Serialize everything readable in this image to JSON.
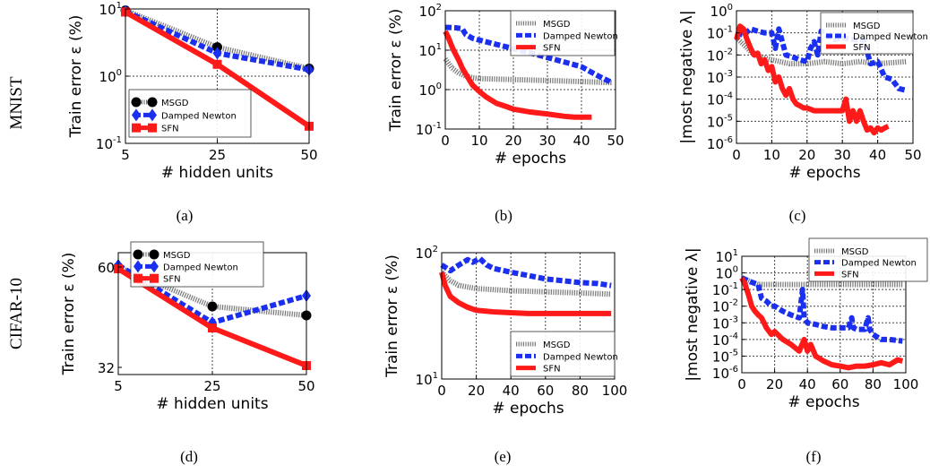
{
  "rows": [
    {
      "label": "MNIST"
    },
    {
      "label": "CIFAR-10"
    }
  ],
  "colors": {
    "MSGD": "#777777",
    "Damped Newton": "#1a2ff0",
    "SFN": "#ff1a1a"
  },
  "chart_data": [
    {
      "panel": "(a)",
      "type": "line",
      "xlabel": "# hidden units",
      "ylabel": "Train error ε (%)",
      "xscale": "categorical",
      "yscale": "log",
      "x": [
        5,
        25,
        50
      ],
      "xticks": [
        "5",
        "25",
        "50"
      ],
      "ylim": [
        0.1,
        10
      ],
      "yticks": [
        0.1,
        1,
        10
      ],
      "yticklabels": [
        "10^-1",
        "10^0",
        "10^1"
      ],
      "grid": true,
      "legend_position": "lower-left",
      "series": [
        {
          "name": "MSGD",
          "values": [
            9.5,
            2.7,
            1.3
          ]
        },
        {
          "name": "Damped Newton",
          "values": [
            9.2,
            2.2,
            1.25
          ]
        },
        {
          "name": "SFN",
          "values": [
            9.0,
            1.5,
            0.18
          ]
        }
      ]
    },
    {
      "panel": "(b)",
      "type": "line",
      "xlabel": "# epochs",
      "ylabel": "Train error ε (%)",
      "xscale": "linear",
      "yscale": "log",
      "xlim": [
        0,
        50
      ],
      "xticks": [
        0,
        10,
        20,
        30,
        40,
        50
      ],
      "ylim": [
        0.1,
        100
      ],
      "yticks": [
        0.1,
        1,
        10,
        100
      ],
      "yticklabels": [
        "10^-1",
        "10^0",
        "10^1",
        "10^2"
      ],
      "grid": true,
      "legend_position": "top-right",
      "series": [
        {
          "name": "MSGD",
          "x": [
            0,
            2,
            4,
            6,
            8,
            10,
            15,
            20,
            30,
            40,
            49
          ],
          "values": [
            6,
            3.5,
            2.6,
            2.2,
            2.0,
            1.9,
            1.85,
            1.8,
            1.7,
            1.6,
            1.5
          ]
        },
        {
          "name": "Damped Newton",
          "x": [
            0,
            3,
            5,
            6,
            8,
            10,
            15,
            20,
            25,
            30,
            35,
            40,
            45,
            49
          ],
          "values": [
            38,
            37,
            35,
            25,
            20,
            18,
            14,
            11,
            8.5,
            6.5,
            5,
            3.8,
            2.2,
            1.5
          ]
        },
        {
          "name": "SFN",
          "x": [
            0,
            1,
            2,
            3,
            4,
            5,
            6,
            7,
            8,
            10,
            12,
            15,
            18,
            20,
            25,
            30,
            35,
            38,
            43
          ],
          "values": [
            30,
            20,
            12,
            8,
            5.5,
            3.5,
            2.5,
            1.8,
            1.3,
            0.9,
            0.65,
            0.45,
            0.37,
            0.32,
            0.27,
            0.24,
            0.21,
            0.2,
            0.2
          ]
        }
      ]
    },
    {
      "panel": "(c)",
      "type": "line",
      "xlabel": "# epochs",
      "ylabel": "|most negative λ|",
      "xscale": "linear",
      "yscale": "log",
      "xlim": [
        0,
        50
      ],
      "xticks": [
        0,
        10,
        20,
        30,
        40,
        50
      ],
      "ylim": [
        1e-06,
        1
      ],
      "yticks": [
        1e-06,
        1e-05,
        0.0001,
        0.001,
        0.01,
        0.1,
        1
      ],
      "yticklabels": [
        "10^-6",
        "10^-5",
        "10^-4",
        "10^-3",
        "10^-2",
        "10^-1",
        "10^0"
      ],
      "grid": true,
      "legend_position": "top-right",
      "series": [
        {
          "name": "MSGD",
          "x": [
            0,
            2,
            5,
            10,
            15,
            20,
            25,
            30,
            35,
            40,
            48
          ],
          "values": [
            0.06,
            0.03,
            0.01,
            0.006,
            0.004,
            0.004,
            0.005,
            0.004,
            0.005,
            0.004,
            0.005
          ]
        },
        {
          "name": "Damped Newton",
          "x": [
            0,
            2,
            4,
            6,
            8,
            10,
            11,
            12,
            14,
            16,
            18,
            20,
            21,
            22,
            23,
            24,
            26,
            28,
            30,
            33,
            36,
            38,
            40,
            42,
            44,
            46,
            48
          ],
          "values": [
            0.1,
            0.08,
            0.15,
            0.12,
            0.1,
            0.1,
            0.02,
            0.15,
            0.01,
            0.008,
            0.006,
            0.005,
            0.02,
            0.04,
            0.01,
            0.12,
            0.07,
            0.05,
            0.06,
            0.05,
            0.05,
            0.004,
            0.005,
            0.001,
            0.0008,
            0.0003,
            0.00025
          ]
        },
        {
          "name": "SFN",
          "x": [
            0,
            1,
            2,
            3,
            4,
            5,
            6,
            7,
            8,
            9,
            10,
            11,
            12,
            13,
            14,
            15,
            16,
            17,
            18,
            19,
            20,
            22,
            24,
            26,
            28,
            30,
            31,
            32,
            33,
            34,
            35,
            36,
            37,
            38,
            39,
            40,
            41,
            42,
            43
          ],
          "values": [
            0.05,
            0.2,
            0.15,
            0.05,
            0.02,
            0.01,
            0.012,
            0.004,
            0.006,
            0.002,
            0.003,
            0.0006,
            0.001,
            0.0003,
            0.00015,
            0.0003,
            0.0001,
            6e-05,
            5e-05,
            4e-05,
            4e-05,
            3e-05,
            3e-05,
            3e-05,
            3e-05,
            3e-05,
            0.0001,
            1e-05,
            3e-05,
            1e-05,
            3e-05,
            1e-05,
            4e-06,
            5e-06,
            3e-06,
            5e-06,
            4e-06,
            5e-06,
            6e-06
          ]
        }
      ]
    },
    {
      "panel": "(d)",
      "type": "line",
      "xlabel": "# hidden units",
      "ylabel": "Train error ε (%)",
      "xscale": "categorical",
      "yscale": "linear",
      "x": [
        5,
        25,
        50
      ],
      "xticks": [
        "5",
        "25",
        "50"
      ],
      "ylim": [
        30,
        64
      ],
      "yticks": [
        32,
        60
      ],
      "yticklabels": [
        "32",
        "60"
      ],
      "grid": true,
      "legend_position": "top-right",
      "series": [
        {
          "name": "MSGD",
          "values": [
            60,
            49,
            46.5
          ]
        },
        {
          "name": "Damped Newton",
          "values": [
            60.5,
            44.5,
            52
          ]
        },
        {
          "name": "SFN",
          "values": [
            59.5,
            43,
            32.5
          ]
        }
      ]
    },
    {
      "panel": "(e)",
      "type": "line",
      "xlabel": "# epochs",
      "ylabel": "Train error ε (%)",
      "xscale": "linear",
      "yscale": "log",
      "xlim": [
        0,
        100
      ],
      "xticks": [
        0,
        20,
        40,
        60,
        80,
        100
      ],
      "ylim": [
        10,
        100
      ],
      "yticks": [
        10,
        100
      ],
      "yticklabels": [
        "10^1",
        "10^2"
      ],
      "grid": true,
      "legend_position": "lower-right",
      "series": [
        {
          "name": "MSGD",
          "x": [
            0,
            5,
            10,
            20,
            30,
            40,
            60,
            80,
            98
          ],
          "values": [
            70,
            60,
            55,
            52,
            51,
            50,
            49,
            48,
            47
          ]
        },
        {
          "name": "Damped Newton",
          "x": [
            0,
            5,
            10,
            15,
            18,
            22,
            26,
            30,
            40,
            50,
            60,
            70,
            80,
            90,
            98
          ],
          "values": [
            80,
            72,
            80,
            88,
            84,
            90,
            80,
            75,
            70,
            66,
            62,
            60,
            58,
            57,
            55
          ]
        },
        {
          "name": "SFN",
          "x": [
            0,
            2,
            5,
            10,
            15,
            20,
            30,
            40,
            50,
            60,
            80,
            98
          ],
          "values": [
            70,
            55,
            45,
            40,
            37,
            35,
            34,
            33.5,
            33,
            33,
            33,
            33
          ]
        }
      ]
    },
    {
      "panel": "(f)",
      "type": "line",
      "xlabel": "# epochs",
      "ylabel": "|most negative λ|",
      "xscale": "linear",
      "yscale": "log",
      "xlim": [
        0,
        100
      ],
      "xticks": [
        0,
        20,
        40,
        60,
        80,
        100
      ],
      "ylim": [
        1e-06,
        10
      ],
      "yticks": [
        1e-06,
        1e-05,
        0.0001,
        0.001,
        0.01,
        0.1,
        1,
        10
      ],
      "yticklabels": [
        "10^-6",
        "10^-5",
        "10^-4",
        "10^-3",
        "10^-2",
        "10^-1",
        "10^0",
        "10^1"
      ],
      "grid": true,
      "legend_position": "top-right",
      "series": [
        {
          "name": "MSGD",
          "x": [
            0,
            5,
            10,
            20,
            40,
            60,
            80,
            98
          ],
          "values": [
            0.5,
            0.3,
            0.2,
            0.2,
            0.2,
            0.2,
            0.2,
            0.2
          ]
        },
        {
          "name": "Damped Newton",
          "x": [
            0,
            5,
            10,
            12,
            15,
            18,
            20,
            25,
            30,
            35,
            37,
            38,
            40,
            45,
            50,
            55,
            60,
            65,
            67,
            68,
            70,
            75,
            77,
            78,
            80,
            85,
            90,
            98
          ],
          "values": [
            0.5,
            0.3,
            0.2,
            0.03,
            0.02,
            0.01,
            0.01,
            0.005,
            0.003,
            0.002,
            0.1,
            0.002,
            0.001,
            0.0008,
            0.0006,
            0.0005,
            0.0005,
            0.0005,
            0.002,
            0.0005,
            0.0004,
            0.0004,
            0.002,
            0.0004,
            0.0002,
            0.0001,
            0.0001,
            8e-05
          ]
        },
        {
          "name": "SFN",
          "x": [
            0,
            2,
            4,
            6,
            8,
            10,
            12,
            15,
            18,
            20,
            25,
            30,
            35,
            38,
            40,
            42,
            45,
            50,
            55,
            60,
            65,
            70,
            75,
            80,
            85,
            90,
            95,
            98
          ],
          "values": [
            0.5,
            0.2,
            0.05,
            0.01,
            0.005,
            0.003,
            0.002,
            0.0005,
            0.0002,
            0.0003,
            0.0001,
            5e-05,
            2e-05,
            0.0001,
            2e-05,
            5e-05,
            1e-05,
            5e-06,
            3e-06,
            2.5e-06,
            2e-06,
            2.5e-06,
            2.5e-06,
            3e-06,
            4e-06,
            3e-06,
            6e-06,
            5e-06
          ]
        }
      ]
    }
  ]
}
